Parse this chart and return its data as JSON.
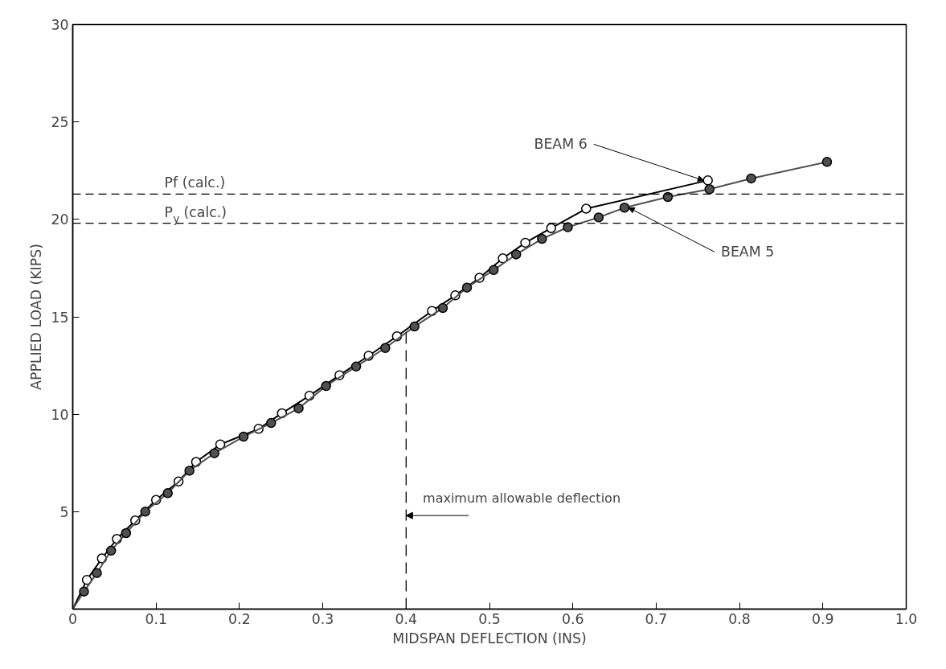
{
  "chart_data": {
    "type": "line",
    "xlabel": "MIDSPAN DEFLECTION (INS)",
    "ylabel": "APPLIED LOAD (KIPS)",
    "xlim": [
      0,
      1.0
    ],
    "ylim": [
      0,
      30
    ],
    "xticks": [
      {
        "value": 0,
        "label": "0"
      },
      {
        "value": 0.1,
        "label": "0.1"
      },
      {
        "value": 0.2,
        "label": "0.2"
      },
      {
        "value": 0.3,
        "label": "0.3"
      },
      {
        "value": 0.4,
        "label": "0.4"
      },
      {
        "value": 0.5,
        "label": "0.5"
      },
      {
        "value": 0.6,
        "label": "0.6"
      },
      {
        "value": 0.7,
        "label": "0.7"
      },
      {
        "value": 0.8,
        "label": "0.8"
      },
      {
        "value": 0.9,
        "label": "0.9"
      },
      {
        "value": 1.0,
        "label": "1.0"
      }
    ],
    "yticks": [
      5,
      10,
      15,
      20,
      25,
      30
    ],
    "grid": false,
    "legend": false,
    "marker": "circle",
    "line_style": "solid",
    "series": [
      {
        "name": "BEAM 6",
        "color": "#000000",
        "x": [
          0,
          0.017,
          0.035,
          0.053,
          0.075,
          0.1,
          0.127,
          0.148,
          0.177,
          0.223,
          0.251,
          0.284,
          0.32,
          0.355,
          0.389,
          0.431,
          0.459,
          0.488,
          0.516,
          0.543,
          0.574,
          0.616,
          0.762
        ],
        "values": [
          0,
          1.5,
          2.6,
          3.6,
          4.55,
          5.6,
          6.55,
          7.55,
          8.45,
          9.25,
          10.05,
          10.95,
          12.0,
          13.0,
          14.0,
          15.3,
          16.1,
          17.0,
          18.0,
          18.8,
          19.55,
          20.55,
          22.0
        ]
      },
      {
        "name": "BEAM 5",
        "color": "#505050",
        "x": [
          0,
          0.0135,
          0.029,
          0.046,
          0.064,
          0.087,
          0.114,
          0.14,
          0.17,
          0.205,
          0.238,
          0.271,
          0.304,
          0.34,
          0.375,
          0.41,
          0.444,
          0.473,
          0.505,
          0.532,
          0.563,
          0.594,
          0.631,
          0.662,
          0.714,
          0.764,
          0.814,
          0.905
        ],
        "values": [
          0,
          0.9,
          1.85,
          3.0,
          3.9,
          5.0,
          5.95,
          7.1,
          8.0,
          8.85,
          9.55,
          10.3,
          11.45,
          12.45,
          13.4,
          14.5,
          15.45,
          16.5,
          17.4,
          18.2,
          19.0,
          19.6,
          20.1,
          20.6,
          21.15,
          21.55,
          22.1,
          22.95
        ]
      }
    ],
    "ref_lines": [
      {
        "axis": "y",
        "value": 21.3,
        "label": "Pf (calc.)",
        "line_style": "dashed",
        "color": "#000000"
      },
      {
        "axis": "y",
        "value": 19.8,
        "label": "P$_{y}$ (calc.)",
        "line_style": "dashed",
        "color": "#000000"
      },
      {
        "axis": "x",
        "value": 0.4,
        "line_style": "dashed",
        "color": "#000000"
      }
    ],
    "annotations": [
      "maximum allowable deflection"
    ]
  }
}
